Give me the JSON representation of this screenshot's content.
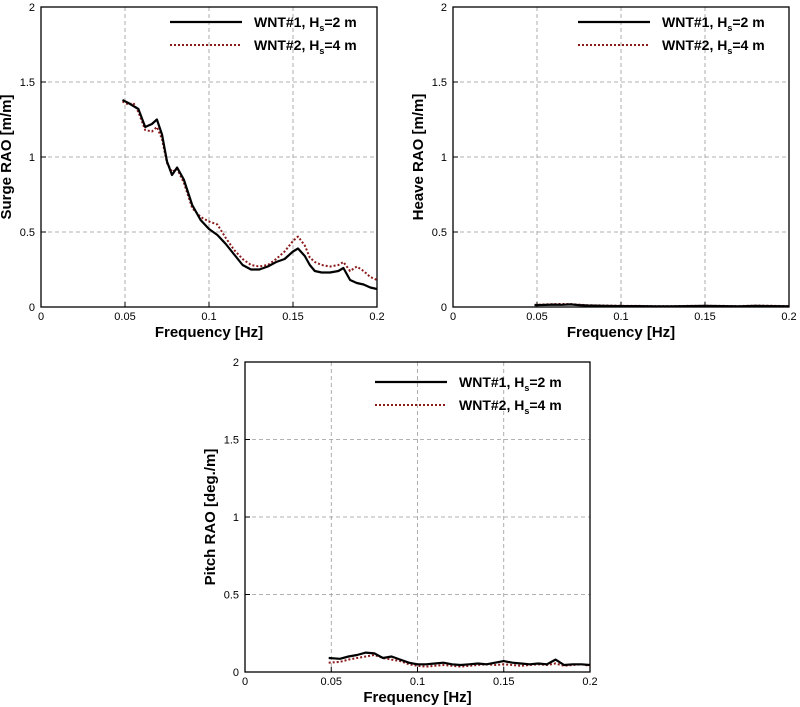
{
  "chart_data": [
    {
      "type": "line",
      "xlabel": "Frequency [Hz]",
      "ylabel": "Surge RAO [m/m]",
      "xlim": [
        0,
        0.2
      ],
      "ylim": [
        0,
        2
      ],
      "xticks": [
        0,
        0.05,
        0.1,
        0.15,
        0.2
      ],
      "xtick_labels": [
        "0",
        "0.05",
        "0.1",
        "0.15",
        "0.2"
      ],
      "yticks": [
        0,
        0.5,
        1,
        1.5,
        2
      ],
      "ytick_labels": [
        "0",
        "0.5",
        "1",
        "1.5",
        "2"
      ],
      "grid": true,
      "legend_position": "top-right",
      "series": [
        {
          "name": "WNT#1, Hs=2 m",
          "legend_main": "WNT#1, H",
          "legend_sub": "s",
          "legend_tail": "=2 m",
          "color": "#000000",
          "style": "solid",
          "x": [
            0.0485,
            0.052,
            0.055,
            0.058,
            0.062,
            0.066,
            0.069,
            0.072,
            0.075,
            0.078,
            0.081,
            0.085,
            0.09,
            0.095,
            0.1,
            0.105,
            0.11,
            0.115,
            0.12,
            0.125,
            0.13,
            0.135,
            0.14,
            0.145,
            0.15,
            0.153,
            0.157,
            0.16,
            0.163,
            0.167,
            0.172,
            0.177,
            0.18,
            0.184,
            0.188,
            0.192,
            0.196,
            0.2
          ],
          "y": [
            1.38,
            1.36,
            1.34,
            1.32,
            1.2,
            1.22,
            1.25,
            1.15,
            0.97,
            0.88,
            0.93,
            0.85,
            0.68,
            0.58,
            0.52,
            0.48,
            0.42,
            0.35,
            0.28,
            0.25,
            0.25,
            0.27,
            0.3,
            0.32,
            0.37,
            0.39,
            0.34,
            0.28,
            0.24,
            0.23,
            0.23,
            0.24,
            0.26,
            0.18,
            0.16,
            0.15,
            0.13,
            0.12
          ]
        },
        {
          "name": "WNT#2, Hs=4 m",
          "legend_main": "WNT#2, H",
          "legend_sub": "s",
          "legend_tail": "=4 m",
          "color": "#8b1a1a",
          "style": "dotted",
          "x": [
            0.0485,
            0.052,
            0.055,
            0.058,
            0.062,
            0.066,
            0.069,
            0.072,
            0.075,
            0.078,
            0.081,
            0.085,
            0.09,
            0.095,
            0.1,
            0.105,
            0.11,
            0.115,
            0.12,
            0.125,
            0.13,
            0.135,
            0.14,
            0.145,
            0.15,
            0.153,
            0.157,
            0.16,
            0.163,
            0.167,
            0.172,
            0.177,
            0.18,
            0.184,
            0.188,
            0.192,
            0.196,
            0.2
          ],
          "y": [
            1.37,
            1.35,
            1.36,
            1.3,
            1.18,
            1.17,
            1.2,
            1.12,
            0.96,
            0.9,
            0.92,
            0.83,
            0.66,
            0.6,
            0.57,
            0.55,
            0.46,
            0.38,
            0.32,
            0.28,
            0.27,
            0.28,
            0.32,
            0.37,
            0.44,
            0.47,
            0.41,
            0.33,
            0.3,
            0.28,
            0.27,
            0.28,
            0.3,
            0.24,
            0.27,
            0.24,
            0.2,
            0.18
          ]
        }
      ]
    },
    {
      "type": "line",
      "xlabel": "Frequency [Hz]",
      "ylabel": "Heave RAO [m/m]",
      "xlim": [
        0,
        0.2
      ],
      "ylim": [
        0,
        2
      ],
      "xticks": [
        0,
        0.05,
        0.1,
        0.15,
        0.2
      ],
      "xtick_labels": [
        "0",
        "0.05",
        "0.1",
        "0.15",
        "0.2"
      ],
      "yticks": [
        0,
        0.5,
        1,
        1.5,
        2
      ],
      "ytick_labels": [
        "0",
        "0.5",
        "1",
        "1.5",
        "2"
      ],
      "grid": true,
      "legend_position": "top-right",
      "series": [
        {
          "name": "WNT#1, Hs=2 m",
          "legend_main": "WNT#1, H",
          "legend_sub": "s",
          "legend_tail": "=2 m",
          "color": "#000000",
          "style": "solid",
          "x": [
            0.0485,
            0.055,
            0.06,
            0.065,
            0.07,
            0.075,
            0.08,
            0.09,
            0.1,
            0.11,
            0.12,
            0.13,
            0.14,
            0.15,
            0.16,
            0.17,
            0.18,
            0.19,
            0.2
          ],
          "y": [
            0.012,
            0.014,
            0.016,
            0.015,
            0.017,
            0.013,
            0.01,
            0.008,
            0.006,
            0.006,
            0.005,
            0.005,
            0.006,
            0.007,
            0.006,
            0.005,
            0.008,
            0.006,
            0.005
          ]
        },
        {
          "name": "WNT#2, Hs=4 m",
          "legend_main": "WNT#2, H",
          "legend_sub": "s",
          "legend_tail": "=4 m",
          "color": "#8b1a1a",
          "style": "dotted",
          "x": [
            0.0485,
            0.055,
            0.06,
            0.065,
            0.07,
            0.075,
            0.08,
            0.09,
            0.1,
            0.11,
            0.12,
            0.13,
            0.14,
            0.15,
            0.16,
            0.17,
            0.18,
            0.19,
            0.2
          ],
          "y": [
            0.014,
            0.017,
            0.019,
            0.02,
            0.019,
            0.016,
            0.012,
            0.01,
            0.008,
            0.007,
            0.006,
            0.006,
            0.007,
            0.008,
            0.007,
            0.006,
            0.009,
            0.008,
            0.006
          ]
        }
      ]
    },
    {
      "type": "line",
      "xlabel": "Frequency [Hz]",
      "ylabel": "Pitch RAO [deg./m]",
      "xlim": [
        0,
        0.2
      ],
      "ylim": [
        0,
        2
      ],
      "xticks": [
        0,
        0.05,
        0.1,
        0.15,
        0.2
      ],
      "xtick_labels": [
        "0",
        "0.05",
        "0.1",
        "0.15",
        "0.2"
      ],
      "yticks": [
        0,
        0.5,
        1,
        1.5,
        2
      ],
      "ytick_labels": [
        "0",
        "0.5",
        "1",
        "1.5",
        "2"
      ],
      "grid": true,
      "legend_position": "top-right",
      "series": [
        {
          "name": "WNT#1, Hs=2 m",
          "legend_main": "WNT#1, H",
          "legend_sub": "s",
          "legend_tail": "=2 m",
          "color": "#000000",
          "style": "solid",
          "x": [
            0.0485,
            0.055,
            0.06,
            0.065,
            0.07,
            0.075,
            0.08,
            0.085,
            0.09,
            0.095,
            0.1,
            0.105,
            0.11,
            0.115,
            0.12,
            0.125,
            0.13,
            0.135,
            0.14,
            0.145,
            0.15,
            0.155,
            0.16,
            0.165,
            0.17,
            0.175,
            0.18,
            0.185,
            0.19,
            0.195,
            0.2
          ],
          "y": [
            0.09,
            0.085,
            0.1,
            0.11,
            0.125,
            0.12,
            0.09,
            0.1,
            0.08,
            0.06,
            0.05,
            0.05,
            0.055,
            0.06,
            0.05,
            0.045,
            0.05,
            0.055,
            0.05,
            0.06,
            0.07,
            0.06,
            0.055,
            0.05,
            0.055,
            0.05,
            0.08,
            0.045,
            0.05,
            0.05,
            0.045
          ]
        },
        {
          "name": "WNT#2, Hs=4 m",
          "legend_main": "WNT#2, H",
          "legend_sub": "s",
          "legend_tail": "=4 m",
          "color": "#8b1a1a",
          "style": "dotted",
          "x": [
            0.0485,
            0.055,
            0.06,
            0.065,
            0.07,
            0.075,
            0.08,
            0.085,
            0.09,
            0.095,
            0.1,
            0.105,
            0.11,
            0.115,
            0.12,
            0.125,
            0.13,
            0.135,
            0.14,
            0.145,
            0.15,
            0.155,
            0.16,
            0.165,
            0.17,
            0.175,
            0.18,
            0.185,
            0.19,
            0.195,
            0.2
          ],
          "y": [
            0.06,
            0.065,
            0.08,
            0.09,
            0.1,
            0.11,
            0.09,
            0.08,
            0.07,
            0.05,
            0.04,
            0.035,
            0.04,
            0.045,
            0.04,
            0.035,
            0.04,
            0.045,
            0.05,
            0.045,
            0.05,
            0.045,
            0.04,
            0.045,
            0.05,
            0.045,
            0.055,
            0.04,
            0.045,
            0.05,
            0.04
          ]
        }
      ]
    }
  ]
}
